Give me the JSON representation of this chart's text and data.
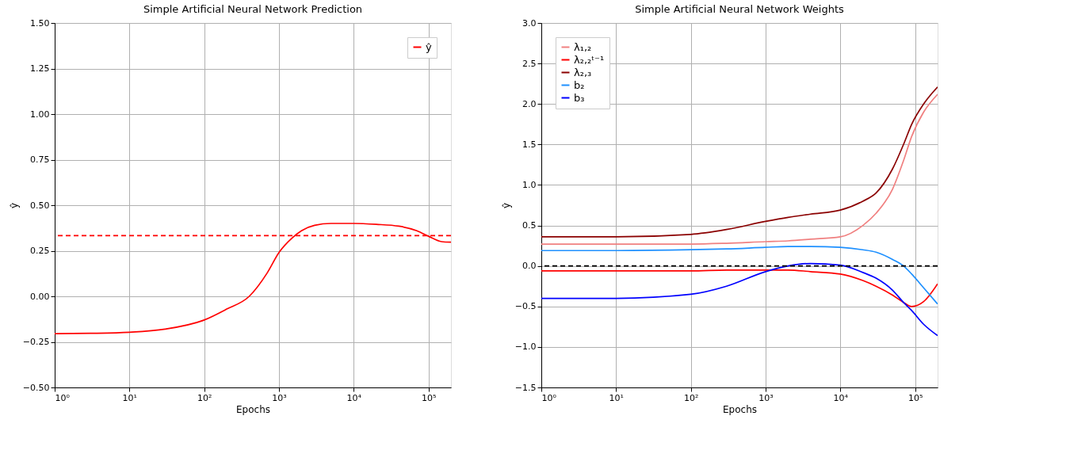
{
  "chart_data": [
    {
      "type": "line",
      "title": "Simple Artificial Neural Network Prediction",
      "xlabel": "Epochs",
      "ylabel": "ŷ",
      "log": "x",
      "grid": true,
      "legend": "top right",
      "marker": "none",
      "xlim": [
        1,
        200000
      ],
      "xticks": [
        {
          "value": 1,
          "label": "10⁰"
        },
        {
          "value": 10,
          "label": "10¹"
        },
        {
          "value": 100,
          "label": "10²"
        },
        {
          "value": 1000,
          "label": "10³"
        },
        {
          "value": 10000,
          "label": "10⁴"
        },
        {
          "value": 100000,
          "label": "10⁵"
        }
      ],
      "ylim": [
        -0.5,
        1.5
      ],
      "yticks": [
        {
          "value": -0.5,
          "label": "−0.50"
        },
        {
          "value": -0.25,
          "label": "−0.25"
        },
        {
          "value": 0,
          "label": "0.00"
        },
        {
          "value": 0.25,
          "label": "0.25"
        },
        {
          "value": 0.5,
          "label": "0.50"
        },
        {
          "value": 0.75,
          "label": "0.75"
        },
        {
          "value": 1,
          "label": "1.00"
        },
        {
          "value": 1.25,
          "label": "1.25"
        },
        {
          "value": 1.5,
          "label": "1.50"
        }
      ],
      "x": [
        1,
        3,
        10,
        30,
        100,
        200,
        400,
        700,
        1000,
        1500,
        2000,
        3000,
        5000,
        10000,
        20000,
        40000,
        70000,
        100000,
        150000,
        200000
      ],
      "series": [
        {
          "name": "ŷ",
          "color": "#ff0000",
          "values": [
            -0.205,
            -0.203,
            -0.197,
            -0.18,
            -0.13,
            -0.07,
            0.0,
            0.13,
            0.24,
            0.32,
            0.36,
            0.39,
            0.4,
            0.4,
            0.395,
            0.385,
            0.36,
            0.33,
            0.3,
            0.297
          ]
        }
      ],
      "ref_lines": [
        {
          "axis": "y",
          "value": 0.333,
          "color": "#ff0000",
          "line_style": "dashed"
        }
      ]
    },
    {
      "type": "line",
      "title": "Simple Artificial Neural Network Weights",
      "xlabel": "Epochs",
      "ylabel": "ŷ",
      "log": "x",
      "grid": true,
      "legend": "top left",
      "marker": "none",
      "xlim": [
        1,
        200000
      ],
      "xticks": [
        {
          "value": 1,
          "label": "10⁰"
        },
        {
          "value": 10,
          "label": "10¹"
        },
        {
          "value": 100,
          "label": "10²"
        },
        {
          "value": 1000,
          "label": "10³"
        },
        {
          "value": 10000,
          "label": "10⁴"
        },
        {
          "value": 100000,
          "label": "10⁵"
        }
      ],
      "ylim": [
        -1.5,
        3.0
      ],
      "yticks": [
        {
          "value": -1.5,
          "label": "−1.5"
        },
        {
          "value": -1,
          "label": "−1.0"
        },
        {
          "value": -0.5,
          "label": "−0.5"
        },
        {
          "value": 0,
          "label": "0.0"
        },
        {
          "value": 0.5,
          "label": "0.5"
        },
        {
          "value": 1,
          "label": "1.0"
        },
        {
          "value": 1.5,
          "label": "1.5"
        },
        {
          "value": 2,
          "label": "2.0"
        },
        {
          "value": 2.5,
          "label": "2.5"
        },
        {
          "value": 3,
          "label": "3.0"
        }
      ],
      "x": [
        1,
        10,
        100,
        300,
        1000,
        2000,
        4000,
        10000,
        20000,
        30000,
        50000,
        70000,
        90000,
        130000,
        200000
      ],
      "series": [
        {
          "name": "λ₁,₂",
          "color": "#f08080",
          "values": [
            0.27,
            0.27,
            0.27,
            0.28,
            0.3,
            0.31,
            0.33,
            0.36,
            0.5,
            0.65,
            0.95,
            1.3,
            1.6,
            1.9,
            2.12
          ]
        },
        {
          "name": "λ₂,₂ᵗ⁻¹",
          "color": "#ff0000",
          "values": [
            -0.06,
            -0.06,
            -0.06,
            -0.05,
            -0.05,
            -0.05,
            -0.07,
            -0.1,
            -0.18,
            -0.25,
            -0.36,
            -0.45,
            -0.5,
            -0.44,
            -0.22
          ]
        },
        {
          "name": "λ₂,₃",
          "color": "#8b0000",
          "values": [
            0.36,
            0.36,
            0.39,
            0.45,
            0.55,
            0.6,
            0.64,
            0.69,
            0.8,
            0.9,
            1.2,
            1.5,
            1.75,
            2.0,
            2.21
          ]
        },
        {
          "name": "b₂",
          "color": "#1e90ff",
          "values": [
            0.19,
            0.19,
            0.2,
            0.21,
            0.23,
            0.24,
            0.24,
            0.23,
            0.2,
            0.17,
            0.08,
            0.0,
            -0.1,
            -0.27,
            -0.47
          ]
        },
        {
          "name": "b₃",
          "color": "#0000ff",
          "values": [
            -0.4,
            -0.4,
            -0.35,
            -0.25,
            -0.07,
            0.0,
            0.03,
            0.01,
            -0.08,
            -0.15,
            -0.3,
            -0.45,
            -0.55,
            -0.72,
            -0.86
          ]
        }
      ],
      "ref_lines": [
        {
          "axis": "y",
          "value": 0,
          "color": "#000000",
          "line_style": "dashed"
        }
      ]
    }
  ]
}
